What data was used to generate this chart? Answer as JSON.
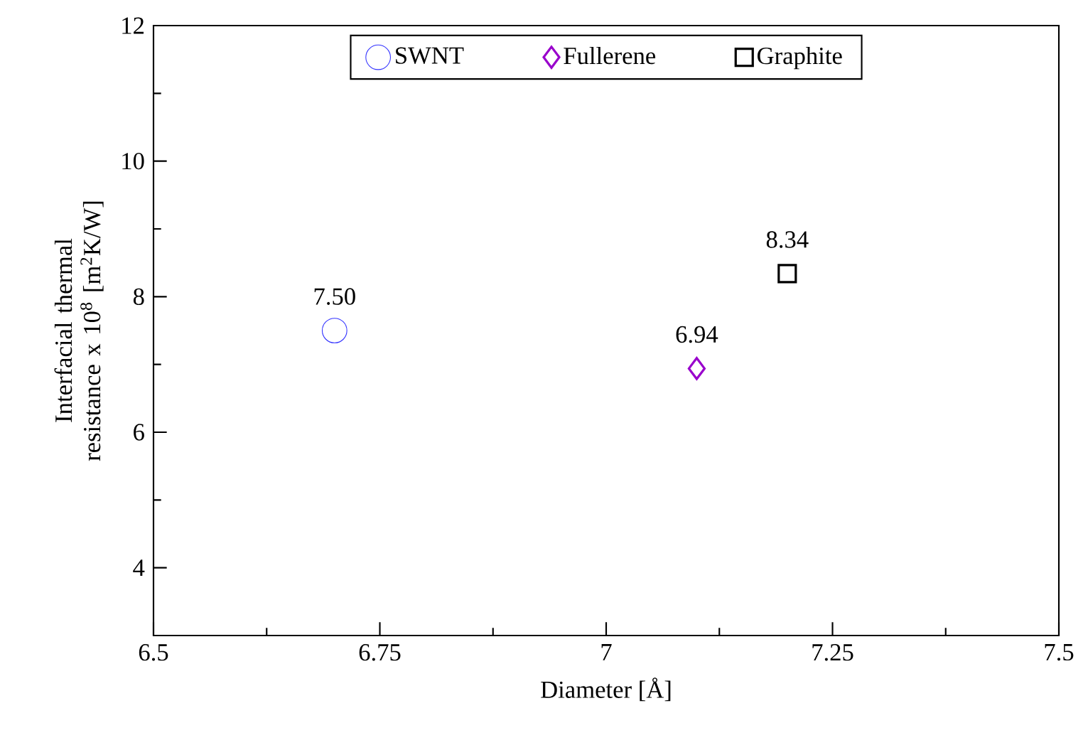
{
  "chart_data": {
    "type": "scatter",
    "xlabel": "Diameter [Å]",
    "ylabel": "Interfacial thermal resistance x 10$^{8}$ [m$^{2}$K/W]",
    "xlim": [
      6.5,
      7.5
    ],
    "xticks": [
      6.5,
      6.75,
      7,
      7.25,
      7.5
    ],
    "ylim": [
      3,
      12
    ],
    "yticks": [
      4,
      6,
      8,
      10,
      12
    ],
    "legend": "top",
    "grid": false,
    "series": [
      {
        "name": "SWNT",
        "color": "#3333ff",
        "marker": "circle",
        "x": [
          6.7
        ],
        "values": [
          7.5
        ],
        "value_labels": [
          "7.50"
        ]
      },
      {
        "name": "Fullerene",
        "color": "#9900cc",
        "marker": "diamond",
        "x": [
          7.1
        ],
        "values": [
          6.94
        ],
        "value_labels": [
          "6.94"
        ]
      },
      {
        "name": "Graphite",
        "color": "#000000",
        "marker": "square",
        "x": [
          7.2
        ],
        "values": [
          8.34
        ],
        "value_labels": [
          "8.34"
        ]
      }
    ]
  }
}
